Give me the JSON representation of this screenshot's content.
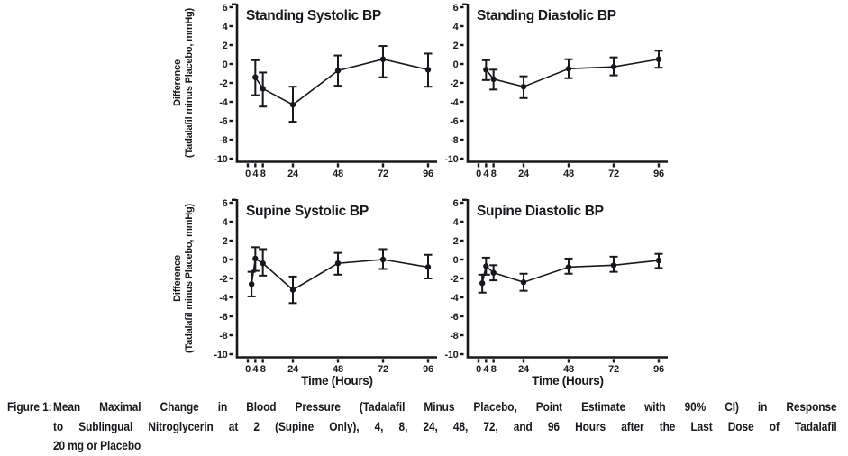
{
  "figure": {
    "ylabel_line1": "Difference",
    "ylabel_line2": "(Tadalafil minus Placebo, mmHg)",
    "caption": {
      "label": "Figure 1:",
      "line1": "Mean Maximal Change in Blood Pressure (Tadalafil Minus Placebo, Point Estimate with 90% CI) in Response",
      "line2": "to Sublingual Nitroglycerin at 2 (Supine Only), 4, 8, 24, 48, 72, and 96 Hours after the Last Dose of Tadalafil",
      "line3": "20 mg or Placebo"
    }
  },
  "colors": {
    "ink": "#18181c",
    "background": "#ffffff"
  },
  "chart_data": [
    {
      "type": "line",
      "title": "Standing Systolic BP",
      "xlabel": "",
      "ylabel": "Difference (Tadalafil minus Placebo, mmHg)",
      "error_bars": "90% CI",
      "marker": "circle",
      "x": [
        4,
        8,
        24,
        48,
        72,
        96
      ],
      "y": [
        -1.4,
        -2.6,
        -4.3,
        -0.7,
        0.5,
        -0.6
      ],
      "ci_low": [
        -3.3,
        -4.5,
        -6.1,
        -2.3,
        -1.4,
        -2.4
      ],
      "ci_high": [
        0.4,
        -0.9,
        -2.4,
        0.9,
        1.9,
        1.1
      ],
      "xticks": [
        0,
        4,
        8,
        24,
        48,
        72,
        96
      ],
      "yticks": [
        6,
        4,
        2,
        0,
        -2,
        -4,
        -6,
        -8,
        -10
      ],
      "xlim": [
        0,
        96
      ],
      "ylim": [
        -10,
        6
      ],
      "grid": false,
      "legend": "none"
    },
    {
      "type": "line",
      "title": "Standing Diastolic BP",
      "xlabel": "",
      "ylabel": "",
      "error_bars": "90% CI",
      "marker": "circle",
      "x": [
        4,
        8,
        24,
        48,
        72,
        96
      ],
      "y": [
        -0.6,
        -1.6,
        -2.4,
        -0.5,
        -0.3,
        0.5
      ],
      "ci_low": [
        -1.7,
        -2.7,
        -3.6,
        -1.5,
        -1.2,
        -0.4
      ],
      "ci_high": [
        0.4,
        -0.6,
        -1.3,
        0.5,
        0.7,
        1.4
      ],
      "xticks": [
        0,
        4,
        8,
        24,
        48,
        72,
        96
      ],
      "yticks": [
        6,
        4,
        2,
        0,
        -2,
        -4,
        -6,
        -8,
        -10
      ],
      "xlim": [
        0,
        96
      ],
      "ylim": [
        -10,
        6
      ],
      "grid": false,
      "legend": "none"
    },
    {
      "type": "line",
      "title": "Supine Systolic BP",
      "xlabel": "Time (Hours)",
      "ylabel": "Difference (Tadalafil minus Placebo, mmHg)",
      "error_bars": "90% CI",
      "marker": "circle",
      "x": [
        2,
        4,
        8,
        24,
        48,
        72,
        96
      ],
      "y": [
        -2.6,
        0.1,
        -0.4,
        -3.2,
        -0.4,
        0.0,
        -0.8
      ],
      "ci_low": [
        -3.9,
        -1.2,
        -1.7,
        -4.6,
        -1.6,
        -1.0,
        -2.0
      ],
      "ci_high": [
        -1.3,
        1.3,
        1.1,
        -1.8,
        0.7,
        1.1,
        0.5
      ],
      "xticks": [
        0,
        4,
        8,
        24,
        48,
        72,
        96
      ],
      "yticks": [
        6,
        4,
        2,
        0,
        -2,
        -4,
        -6,
        -8,
        -10
      ],
      "xlim": [
        0,
        96
      ],
      "ylim": [
        -10,
        6
      ],
      "grid": false,
      "legend": "none"
    },
    {
      "type": "line",
      "title": "Supine Diastolic BP",
      "xlabel": "Time (Hours)",
      "ylabel": "",
      "error_bars": "90% CI",
      "marker": "circle",
      "x": [
        2,
        4,
        8,
        24,
        48,
        72,
        96
      ],
      "y": [
        -2.5,
        -0.7,
        -1.4,
        -2.4,
        -0.8,
        -0.6,
        -0.1
      ],
      "ci_low": [
        -3.5,
        -1.6,
        -2.2,
        -3.3,
        -1.5,
        -1.3,
        -0.9
      ],
      "ci_high": [
        -1.6,
        0.2,
        -0.6,
        -1.5,
        0.1,
        0.3,
        0.6
      ],
      "xticks": [
        0,
        4,
        8,
        24,
        48,
        72,
        96
      ],
      "yticks": [
        6,
        4,
        2,
        0,
        -2,
        -4,
        -6,
        -8,
        -10
      ],
      "xlim": [
        0,
        96
      ],
      "ylim": [
        -10,
        6
      ],
      "grid": false,
      "legend": "none"
    }
  ]
}
